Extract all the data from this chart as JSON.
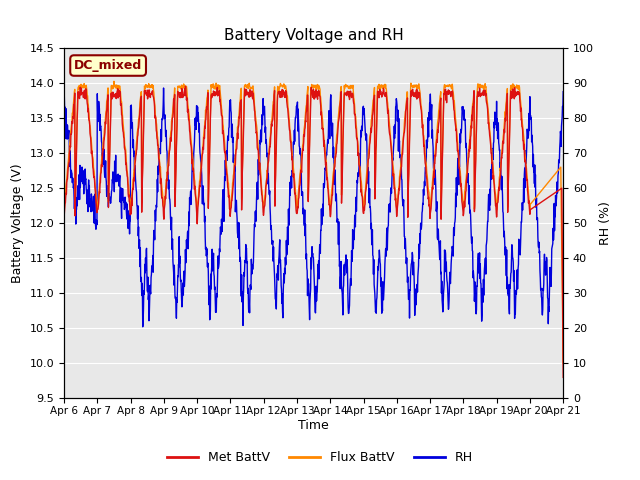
{
  "title": "Battery Voltage and RH",
  "xlabel": "Time",
  "ylabel_left": "Battery Voltage (V)",
  "ylabel_right": "RH (%)",
  "ylim_left": [
    9.5,
    14.5
  ],
  "ylim_right": [
    0,
    100
  ],
  "xtick_labels": [
    "Apr 6",
    "Apr 7",
    "Apr 8",
    "Apr 9",
    "Apr 10",
    "Apr 11",
    "Apr 12",
    "Apr 13",
    "Apr 14",
    "Apr 15",
    "Apr 16",
    "Apr 17",
    "Apr 18",
    "Apr 19",
    "Apr 20",
    "Apr 21"
  ],
  "color_met": "#dd1111",
  "color_flux": "#ff8800",
  "color_rh": "#0000dd",
  "label_met": "Met BattV",
  "label_flux": "Flux BattV",
  "label_rh": "RH",
  "annotation_text": "DC_mixed",
  "annotation_color": "#8b0000",
  "annotation_bg": "#ffffcc",
  "bg_color": "#e8e8e8",
  "fig_bg": "#ffffff",
  "linewidth": 1.0
}
